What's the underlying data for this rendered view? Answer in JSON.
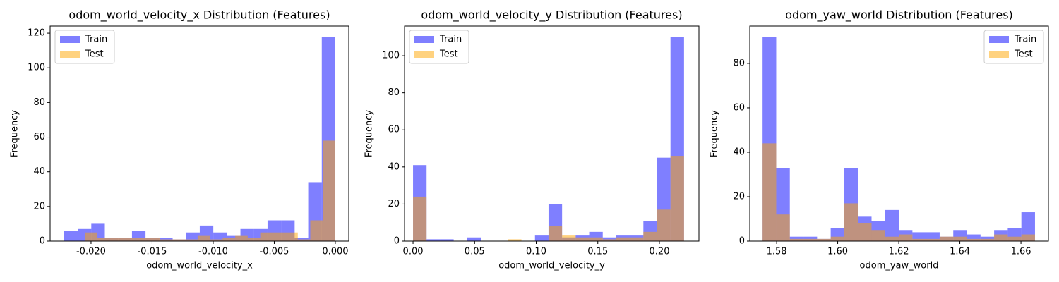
{
  "chart_data": [
    {
      "type": "histogram",
      "title": "odom_world_velocity_x Distribution (Features)",
      "xlabel": "odom_world_velocity_x",
      "ylabel": "Frequency",
      "xlim": [
        -0.02335,
        0.0011
      ],
      "ylim": [
        0,
        124.1
      ],
      "xticks": [
        {
          "value": -0.02,
          "label": "-0.020"
        },
        {
          "value": -0.015,
          "label": "-0.015"
        },
        {
          "value": -0.01,
          "label": "-0.010"
        },
        {
          "value": -0.005,
          "label": "-0.005"
        },
        {
          "value": 0,
          "label": "0.000"
        }
      ],
      "yticks": [
        0,
        20,
        40,
        60,
        80,
        100,
        120
      ],
      "legend": "upper left",
      "alpha": 0.5,
      "series": [
        {
          "name": "Train",
          "color": "blue",
          "bins": [
            -0.0222,
            -0.02109,
            -0.01998,
            -0.01887,
            -0.01776,
            -0.01665,
            -0.01554,
            -0.01443,
            -0.01332,
            -0.01221,
            -0.0111,
            -0.00999,
            -0.00888,
            -0.00777,
            -0.00666,
            -0.00555,
            -0.00444,
            -0.00333,
            -0.00222,
            -0.00111,
            0
          ],
          "values": [
            6,
            7,
            10,
            2,
            2,
            6,
            2,
            2,
            1,
            5,
            9,
            5,
            3,
            7,
            7,
            12,
            12,
            2,
            34,
            118
          ]
        },
        {
          "name": "Test",
          "color": "orange",
          "bins": [
            -0.0205,
            -0.019475,
            -0.01845,
            -0.017425,
            -0.0164,
            -0.015375,
            -0.01435,
            -0.013325,
            -0.0123,
            -0.011275,
            -0.01025,
            -0.009225,
            -0.0082,
            -0.007175,
            -0.00615,
            -0.005125,
            -0.0041,
            -0.003075,
            -0.00205,
            -0.001025,
            0
          ],
          "values": [
            5,
            2,
            2,
            2,
            2,
            2,
            1,
            1,
            1,
            3,
            1,
            2,
            3,
            2,
            5,
            5,
            5,
            1,
            12,
            58
          ]
        }
      ]
    },
    {
      "type": "histogram",
      "title": "odom_world_velocity_y Distribution (Features)",
      "xlabel": "odom_world_velocity_y",
      "ylabel": "Frequency",
      "xlim": [
        -0.0069,
        0.2321
      ],
      "ylim": [
        0,
        116
      ],
      "xticks": [
        {
          "value": 0,
          "label": "0.00"
        },
        0.05,
        {
          "value": 0.1,
          "label": "0.10"
        },
        0.15,
        {
          "value": 0.2,
          "label": "0.20"
        }
      ],
      "yticks": [
        0,
        20,
        40,
        60,
        80,
        100
      ],
      "legend": "upper left",
      "alpha": 0.5,
      "series": [
        {
          "name": "Train",
          "color": "blue",
          "bins": [
            0,
            0.011,
            0.022,
            0.033,
            0.044,
            0.055,
            0.066,
            0.077,
            0.088,
            0.099,
            0.11,
            0.121,
            0.132,
            0.143,
            0.154,
            0.165,
            0.176,
            0.187,
            0.198,
            0.209,
            0.22
          ],
          "values": [
            41,
            1,
            1,
            0,
            2,
            0,
            0,
            0,
            0,
            3,
            20,
            2,
            3,
            5,
            2,
            3,
            3,
            11,
            45,
            110
          ]
        },
        {
          "name": "Test",
          "color": "orange",
          "bins": [
            0,
            0.011,
            0.022,
            0.033,
            0.044,
            0.055,
            0.066,
            0.077,
            0.088,
            0.099,
            0.11,
            0.121,
            0.132,
            0.143,
            0.154,
            0.165,
            0.176,
            0.187,
            0.198,
            0.209,
            0.22
          ],
          "values": [
            24,
            0,
            0,
            0,
            0,
            0,
            0,
            1,
            0,
            0,
            8,
            3,
            2,
            2,
            1,
            2,
            2,
            5,
            17,
            46
          ]
        }
      ]
    },
    {
      "type": "histogram",
      "title": "odom_yaw_world Distribution (Features)",
      "xlabel": "odom_yaw_world",
      "ylabel": "Frequency",
      "xlim": [
        1.5712,
        1.669
      ],
      "ylim": [
        0,
        96.8
      ],
      "xticks": [
        1.58,
        {
          "value": 1.6,
          "label": "1.60"
        },
        1.62,
        1.64,
        1.66
      ],
      "yticks": [
        0,
        20,
        40,
        60,
        80
      ],
      "legend": "upper right",
      "alpha": 0.5,
      "series": [
        {
          "name": "Train",
          "color": "blue",
          "bins": [
            1.5754,
            1.57986,
            1.58432,
            1.58878,
            1.59324,
            1.5977,
            1.60216,
            1.60662,
            1.61108,
            1.61554,
            1.62,
            1.62446,
            1.62892,
            1.63338,
            1.63784,
            1.6423,
            1.64676,
            1.65122,
            1.65568,
            1.66014,
            1.6646
          ],
          "values": [
            92,
            33,
            2,
            2,
            1,
            6,
            33,
            11,
            9,
            14,
            5,
            4,
            4,
            2,
            5,
            3,
            2,
            5,
            6,
            13
          ]
        },
        {
          "name": "Test",
          "color": "orange",
          "bins": [
            1.5754,
            1.57986,
            1.58432,
            1.58878,
            1.59324,
            1.5977,
            1.60216,
            1.60662,
            1.61108,
            1.61554,
            1.62,
            1.62446,
            1.62892,
            1.63338,
            1.63784,
            1.6423,
            1.64676,
            1.65122,
            1.65568,
            1.66014,
            1.6646
          ],
          "values": [
            44,
            12,
            1,
            1,
            1,
            2,
            17,
            8,
            5,
            2,
            3,
            1,
            1,
            2,
            2,
            1,
            1,
            3,
            2,
            3
          ]
        }
      ]
    }
  ]
}
